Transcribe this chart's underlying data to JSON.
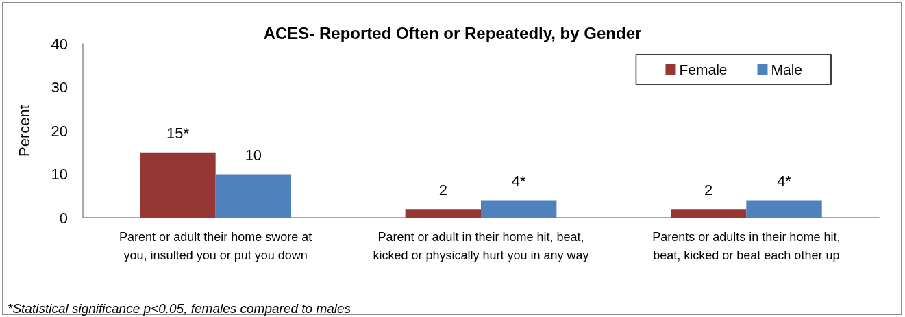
{
  "chart_data": {
    "type": "bar",
    "title": "ACES- Reported Often or Repeatedly, by Gender",
    "ylabel": "Percent",
    "categories": [
      "Parent or adult their home swore at you, insulted you or put you down",
      "Parent or adult in their home hit, beat, kicked or physically hurt you in any way",
      "Parents or adults in their home hit, beat, kicked or beat each other up"
    ],
    "series": [
      {
        "name": "Female",
        "color": "#953735",
        "values": [
          15,
          2,
          2
        ],
        "value_labels": [
          "15*",
          "2",
          "2"
        ]
      },
      {
        "name": "Male",
        "color": "#4f81bd",
        "values": [
          10,
          4,
          4
        ],
        "value_labels": [
          "10",
          "4*",
          "4*"
        ]
      }
    ],
    "ylim": [
      0,
      40
    ],
    "yticks": [
      0,
      10,
      20,
      30,
      40
    ],
    "grid": false,
    "legend": "top right",
    "annotations": [
      "*Statistical significance p<0.05, females compared to males"
    ]
  }
}
